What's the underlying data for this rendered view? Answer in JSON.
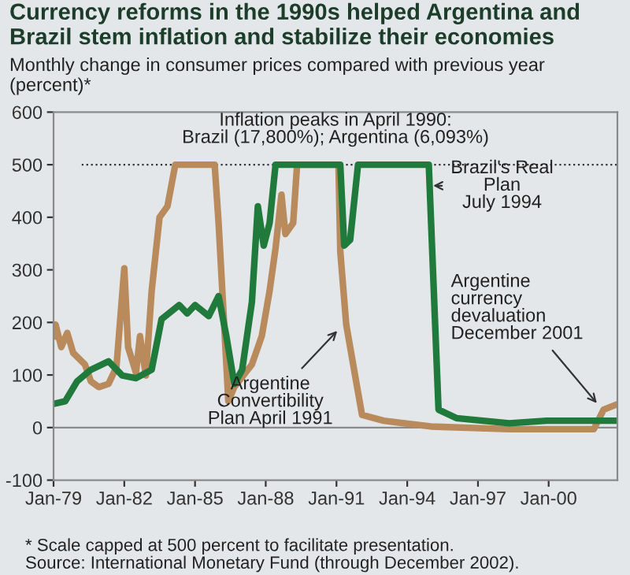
{
  "chart_data": {
    "type": "line",
    "title": "Currency reforms in the 1990s helped Argentina and Brazil stem inflation and stabilize their economies",
    "subtitle": "Monthly change in consumer prices compared with previous year (percent)*",
    "series": [
      {
        "color": "#b88a5c",
        "x": [
          "1979-01",
          "1979-02",
          "1979-05",
          "1979-08",
          "1979-11",
          "1980-05",
          "1980-08",
          "1980-12",
          "1981-05",
          "1981-09",
          "1982-01",
          "1982-03",
          "1982-07",
          "1982-09",
          "1982-12",
          "1983-03",
          "1983-07",
          "1983-11",
          "1984-03",
          "1985-11",
          "1986-01",
          "1986-06",
          "1986-09",
          "1987-06",
          "1987-11",
          "1988-03",
          "1988-06",
          "1988-09",
          "1988-11",
          "1989-03",
          "1989-05",
          "1991-02",
          "1991-03",
          "1991-06",
          "1991-11",
          "1992-02",
          "1993-01",
          "1995-01",
          "1998-05",
          "2001-12",
          "2002-05",
          "2002-11"
        ],
        "values": [
          174,
          196,
          153,
          180,
          142,
          120,
          88,
          77,
          83,
          115,
          303,
          153,
          104,
          174,
          99,
          260,
          400,
          421,
          500,
          500,
          389,
          50,
          77,
          120,
          174,
          260,
          341,
          443,
          368,
          389,
          500,
          500,
          335,
          196,
          88,
          24,
          13,
          2,
          -3,
          -3,
          34,
          43
        ]
      },
      {
        "color": "#1f7a3c",
        "x": [
          "1979-01",
          "1979-07",
          "1980-01",
          "1980-08",
          "1981-05",
          "1981-12",
          "1982-07",
          "1983-03",
          "1983-08",
          "1984-05",
          "1984-09",
          "1985-01",
          "1985-08",
          "1986-01",
          "1986-05",
          "1986-09",
          "1987-01",
          "1987-06",
          "1987-09",
          "1987-12",
          "1988-03",
          "1988-06",
          "1991-03",
          "1991-05",
          "1991-08",
          "1991-12",
          "1994-12",
          "1995-05",
          "1996-02",
          "1998-05",
          "1999-12",
          "2002-11"
        ],
        "values": [
          45,
          50,
          88,
          110,
          126,
          99,
          94,
          110,
          206,
          233,
          217,
          233,
          212,
          250,
          174,
          83,
          110,
          239,
          421,
          346,
          389,
          500,
          500,
          346,
          357,
          500,
          500,
          34,
          18,
          8,
          13,
          13
        ]
      }
    ],
    "xlim": [
      "1979-01",
      "2002-12"
    ],
    "xticks": [
      {
        "value": "1979-01",
        "label": "Jan-79"
      },
      {
        "value": "1982-01",
        "label": "Jan-82"
      },
      {
        "value": "1985-01",
        "label": "Jan-85"
      },
      {
        "value": "1988-01",
        "label": "Jan-88"
      },
      {
        "value": "1991-01",
        "label": "Jan-91"
      },
      {
        "value": "1994-01",
        "label": "Jan-94"
      },
      {
        "value": "1997-01",
        "label": "Jan-97"
      },
      {
        "value": "2000-01",
        "label": "Jan-00"
      }
    ],
    "ylim": [
      -100,
      600
    ],
    "yticks": [
      -100,
      0,
      100,
      200,
      300,
      400,
      500,
      600
    ],
    "grid": false,
    "legend": false,
    "ref_lines": [
      {
        "axis": "y",
        "value": 500,
        "color": "#333333",
        "line_style": "dotted"
      },
      {
        "axis": "y",
        "value": 0,
        "color": "#8a8a8a",
        "line_style": "solid"
      }
    ],
    "annotations": [
      "Inflation peaks in April 1990:\nBrazil (17,800%); Argentina (6,093%)",
      {
        "text": "Brazil's Real\nPlan\nJuly 1994",
        "x": "1994-12",
        "y": 460
      },
      {
        "text": "Argentine\nConvertibility\nPlan April 1991",
        "x": "1991-03",
        "y": 190
      },
      {
        "text": "Argentine\ncurrency\ndevaluation\nDecember 2001",
        "x": "2002-03",
        "y": 40
      },
      "* Scale capped at 500 percent to facilitate presentation.\nSource: International Monetary Fund (through December 2002)."
    ]
  }
}
